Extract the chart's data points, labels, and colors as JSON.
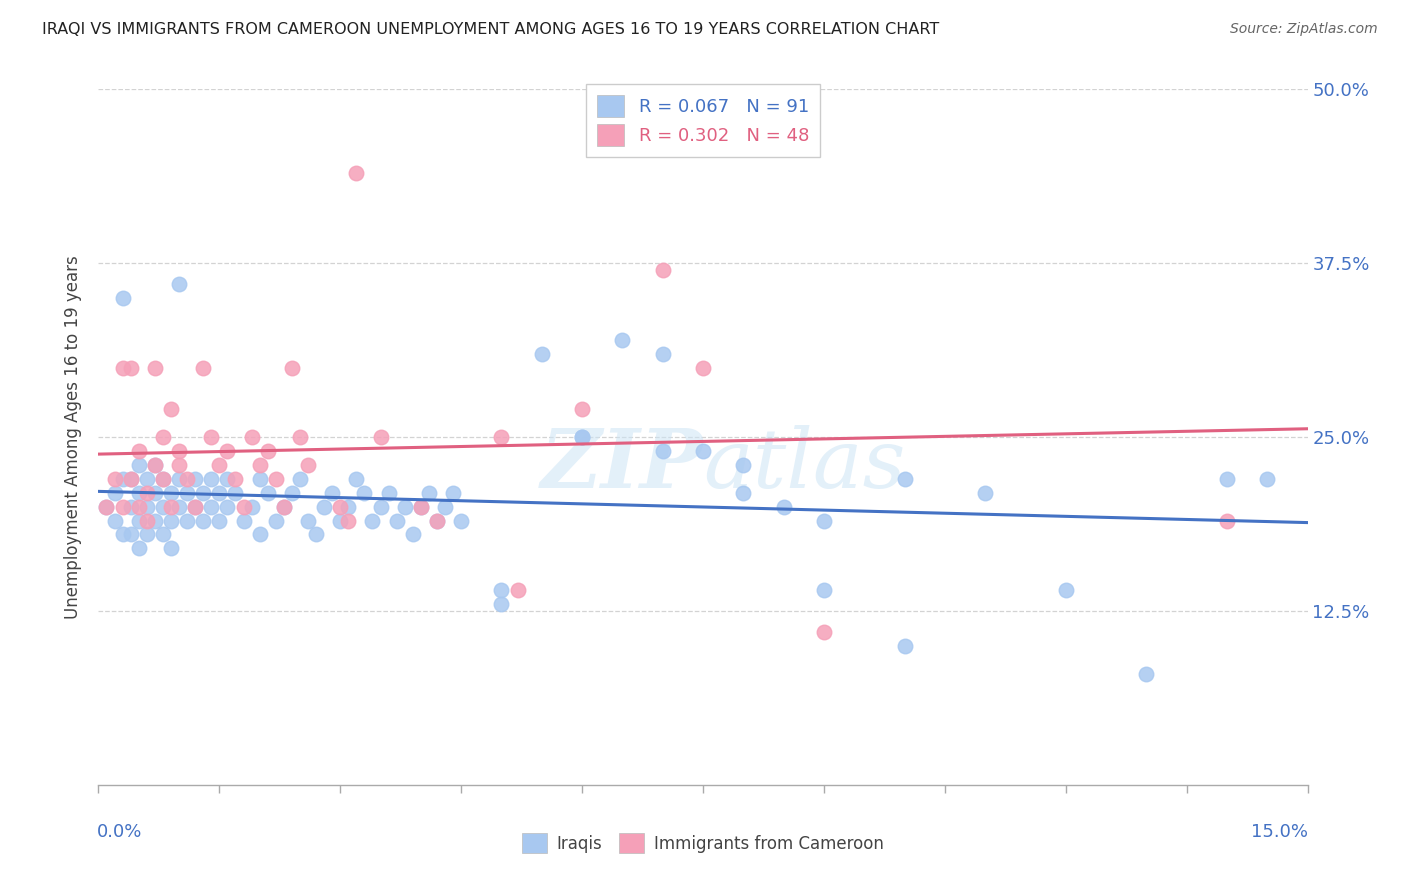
{
  "title": "IRAQI VS IMMIGRANTS FROM CAMEROON UNEMPLOYMENT AMONG AGES 16 TO 19 YEARS CORRELATION CHART",
  "source": "Source: ZipAtlas.com",
  "ylabel": "Unemployment Among Ages 16 to 19 years",
  "watermark": "ZIPatlas",
  "iraqis_color": "#a8c8f0",
  "cameroon_color": "#f5a0b8",
  "iraqis_line_color": "#4472c4",
  "cameroon_line_color": "#e06080",
  "iraqis_label": "Iraqis",
  "cameroon_label": "Immigrants from Cameroon",
  "R_iraqis": "0.067",
  "N_iraqis": "91",
  "R_cameroon": "0.302",
  "N_cameroon": "48",
  "xlim": [
    0.0,
    0.15
  ],
  "ylim": [
    0.0,
    0.5
  ],
  "yticks": [
    0.125,
    0.25,
    0.375,
    0.5
  ],
  "ytick_labels": [
    "12.5%",
    "25.0%",
    "37.5%",
    "50.0%"
  ],
  "iraqis_x": [
    0.001,
    0.002,
    0.002,
    0.003,
    0.003,
    0.003,
    0.004,
    0.004,
    0.004,
    0.005,
    0.005,
    0.005,
    0.005,
    0.006,
    0.006,
    0.006,
    0.007,
    0.007,
    0.007,
    0.008,
    0.008,
    0.008,
    0.009,
    0.009,
    0.009,
    0.01,
    0.01,
    0.01,
    0.011,
    0.011,
    0.012,
    0.012,
    0.013,
    0.013,
    0.014,
    0.014,
    0.015,
    0.015,
    0.016,
    0.016,
    0.017,
    0.018,
    0.019,
    0.02,
    0.02,
    0.021,
    0.022,
    0.023,
    0.024,
    0.025,
    0.026,
    0.027,
    0.028,
    0.029,
    0.03,
    0.031,
    0.032,
    0.033,
    0.034,
    0.035,
    0.036,
    0.037,
    0.038,
    0.039,
    0.04,
    0.041,
    0.042,
    0.043,
    0.044,
    0.045,
    0.05,
    0.055,
    0.06,
    0.065,
    0.07,
    0.075,
    0.08,
    0.085,
    0.09,
    0.1,
    0.11,
    0.12,
    0.13,
    0.14,
    0.145,
    0.05,
    0.06,
    0.07,
    0.08,
    0.09,
    0.1
  ],
  "iraqis_y": [
    0.2,
    0.21,
    0.19,
    0.22,
    0.18,
    0.35,
    0.2,
    0.22,
    0.18,
    0.21,
    0.19,
    0.23,
    0.17,
    0.2,
    0.22,
    0.18,
    0.21,
    0.19,
    0.23,
    0.2,
    0.22,
    0.18,
    0.21,
    0.19,
    0.17,
    0.2,
    0.22,
    0.36,
    0.21,
    0.19,
    0.2,
    0.22,
    0.21,
    0.19,
    0.2,
    0.22,
    0.21,
    0.19,
    0.2,
    0.22,
    0.21,
    0.19,
    0.2,
    0.22,
    0.18,
    0.21,
    0.19,
    0.2,
    0.21,
    0.22,
    0.19,
    0.18,
    0.2,
    0.21,
    0.19,
    0.2,
    0.22,
    0.21,
    0.19,
    0.2,
    0.21,
    0.19,
    0.2,
    0.18,
    0.2,
    0.21,
    0.19,
    0.2,
    0.21,
    0.19,
    0.14,
    0.31,
    0.25,
    0.32,
    0.31,
    0.24,
    0.23,
    0.2,
    0.14,
    0.1,
    0.21,
    0.14,
    0.08,
    0.22,
    0.22,
    0.13,
    0.25,
    0.24,
    0.21,
    0.19,
    0.22
  ],
  "cameroon_x": [
    0.001,
    0.002,
    0.003,
    0.003,
    0.004,
    0.004,
    0.005,
    0.005,
    0.006,
    0.006,
    0.007,
    0.007,
    0.008,
    0.008,
    0.009,
    0.009,
    0.01,
    0.01,
    0.011,
    0.012,
    0.013,
    0.014,
    0.015,
    0.016,
    0.017,
    0.018,
    0.019,
    0.02,
    0.021,
    0.022,
    0.023,
    0.024,
    0.025,
    0.026,
    0.03,
    0.031,
    0.032,
    0.035,
    0.04,
    0.042,
    0.05,
    0.052,
    0.06,
    0.065,
    0.07,
    0.075,
    0.09,
    0.14
  ],
  "cameroon_y": [
    0.2,
    0.22,
    0.3,
    0.2,
    0.3,
    0.22,
    0.24,
    0.2,
    0.21,
    0.19,
    0.23,
    0.3,
    0.25,
    0.22,
    0.2,
    0.27,
    0.23,
    0.24,
    0.22,
    0.2,
    0.3,
    0.25,
    0.23,
    0.24,
    0.22,
    0.2,
    0.25,
    0.23,
    0.24,
    0.22,
    0.2,
    0.3,
    0.25,
    0.23,
    0.2,
    0.19,
    0.44,
    0.25,
    0.2,
    0.19,
    0.25,
    0.14,
    0.27,
    0.46,
    0.37,
    0.3,
    0.11,
    0.19
  ]
}
